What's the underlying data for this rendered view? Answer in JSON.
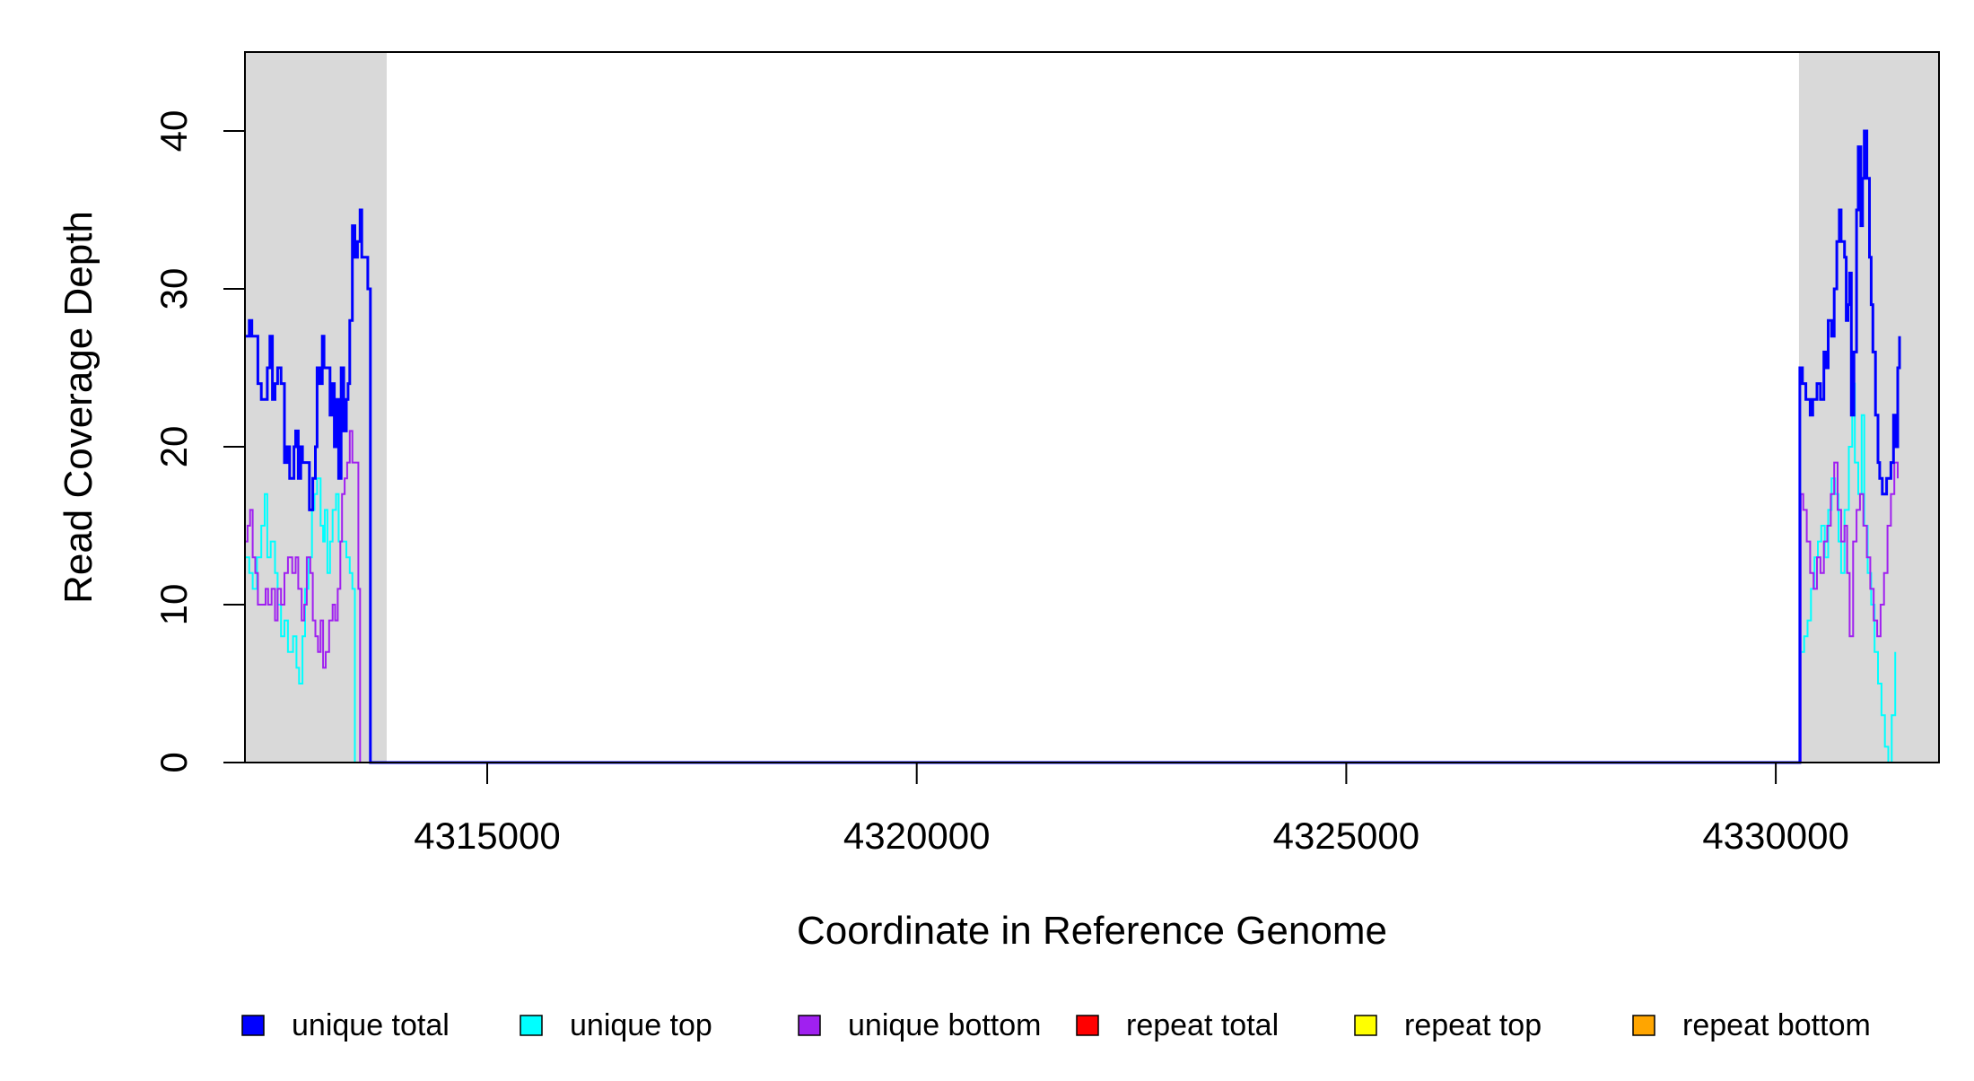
{
  "chart_data": {
    "type": "line",
    "title": "",
    "xlabel": "Coordinate in Reference Genome",
    "ylabel": "Read Coverage Depth",
    "xlim": [
      4312180,
      4331900
    ],
    "ylim": [
      0,
      45
    ],
    "x_ticks": [
      4315000,
      4320000,
      4325000,
      4330000
    ],
    "x_tick_labels": [
      "4315000",
      "4320000",
      "4325000",
      "4330000"
    ],
    "y_ticks": [
      0,
      10,
      20,
      30,
      40
    ],
    "y_tick_labels": [
      "0",
      "10",
      "20",
      "30",
      "40"
    ],
    "grid": false,
    "legend_position": "bottom",
    "shaded_regions": [
      {
        "x": [
          4312180,
          4313830
        ],
        "color": "#d9d9d9"
      },
      {
        "x": [
          4330270,
          4331900
        ],
        "color": "#d9d9d9"
      }
    ],
    "series": [
      {
        "name": "unique total",
        "color": "#0000ff",
        "points": [
          [
            4312180,
            27
          ],
          [
            4312230,
            28
          ],
          [
            4312260,
            27
          ],
          [
            4312300,
            27
          ],
          [
            4312330,
            24
          ],
          [
            4312370,
            23
          ],
          [
            4312440,
            25
          ],
          [
            4312470,
            27
          ],
          [
            4312500,
            23
          ],
          [
            4312530,
            24
          ],
          [
            4312560,
            25
          ],
          [
            4312600,
            24
          ],
          [
            4312640,
            19
          ],
          [
            4312670,
            20
          ],
          [
            4312700,
            18
          ],
          [
            4312750,
            20
          ],
          [
            4312770,
            21
          ],
          [
            4312800,
            18
          ],
          [
            4312830,
            20
          ],
          [
            4312850,
            19
          ],
          [
            4312900,
            19
          ],
          [
            4312930,
            16
          ],
          [
            4312970,
            18
          ],
          [
            4313000,
            20
          ],
          [
            4313020,
            25
          ],
          [
            4313050,
            24
          ],
          [
            4313080,
            27
          ],
          [
            4313100,
            25
          ],
          [
            4313150,
            25
          ],
          [
            4313170,
            22
          ],
          [
            4313200,
            24
          ],
          [
            4313220,
            20
          ],
          [
            4313250,
            23
          ],
          [
            4313270,
            18
          ],
          [
            4313300,
            25
          ],
          [
            4313330,
            21
          ],
          [
            4313360,
            23
          ],
          [
            4313380,
            24
          ],
          [
            4313400,
            28
          ],
          [
            4313430,
            34
          ],
          [
            4313460,
            32
          ],
          [
            4313490,
            33
          ],
          [
            4313520,
            35
          ],
          [
            4313540,
            32
          ],
          [
            4313580,
            32
          ],
          [
            4313610,
            30
          ],
          [
            4313630,
            30
          ],
          [
            4313640,
            0
          ],
          [
            4330270,
            0
          ],
          [
            4330280,
            25
          ],
          [
            4330310,
            24
          ],
          [
            4330350,
            23
          ],
          [
            4330400,
            22
          ],
          [
            4330430,
            23
          ],
          [
            4330480,
            24
          ],
          [
            4330520,
            23
          ],
          [
            4330560,
            26
          ],
          [
            4330590,
            25
          ],
          [
            4330610,
            28
          ],
          [
            4330650,
            27
          ],
          [
            4330680,
            30
          ],
          [
            4330710,
            33
          ],
          [
            4330740,
            35
          ],
          [
            4330760,
            33
          ],
          [
            4330800,
            32
          ],
          [
            4330820,
            28
          ],
          [
            4330840,
            29
          ],
          [
            4330860,
            31
          ],
          [
            4330880,
            22
          ],
          [
            4330910,
            26
          ],
          [
            4330940,
            35
          ],
          [
            4330960,
            39
          ],
          [
            4330990,
            34
          ],
          [
            4331010,
            37
          ],
          [
            4331030,
            40
          ],
          [
            4331060,
            37
          ],
          [
            4331090,
            32
          ],
          [
            4331110,
            29
          ],
          [
            4331130,
            26
          ],
          [
            4331160,
            22
          ],
          [
            4331190,
            19
          ],
          [
            4331210,
            18
          ],
          [
            4331240,
            17
          ],
          [
            4331290,
            18
          ],
          [
            4331340,
            19
          ],
          [
            4331370,
            22
          ],
          [
            4331390,
            20
          ],
          [
            4331420,
            25
          ],
          [
            4331440,
            27
          ]
        ]
      },
      {
        "name": "unique top",
        "color": "#00ffff",
        "points": [
          [
            4312180,
            13
          ],
          [
            4312230,
            12
          ],
          [
            4312270,
            11
          ],
          [
            4312320,
            13
          ],
          [
            4312370,
            15
          ],
          [
            4312410,
            17
          ],
          [
            4312440,
            13
          ],
          [
            4312480,
            14
          ],
          [
            4312530,
            12
          ],
          [
            4312560,
            10
          ],
          [
            4312600,
            8
          ],
          [
            4312640,
            9
          ],
          [
            4312680,
            7
          ],
          [
            4312740,
            8
          ],
          [
            4312780,
            6
          ],
          [
            4312810,
            5
          ],
          [
            4312850,
            8
          ],
          [
            4312880,
            11
          ],
          [
            4312920,
            13
          ],
          [
            4312960,
            16
          ],
          [
            4312990,
            17
          ],
          [
            4313020,
            18
          ],
          [
            4313060,
            15
          ],
          [
            4313090,
            14
          ],
          [
            4313110,
            16
          ],
          [
            4313140,
            12
          ],
          [
            4313170,
            14
          ],
          [
            4313200,
            16
          ],
          [
            4313240,
            17
          ],
          [
            4313270,
            14
          ],
          [
            4313320,
            14
          ],
          [
            4313360,
            13
          ],
          [
            4313400,
            12
          ],
          [
            4313430,
            11
          ],
          [
            4313460,
            0
          ],
          [
            4330270,
            0
          ],
          [
            4330290,
            7
          ],
          [
            4330330,
            8
          ],
          [
            4330370,
            9
          ],
          [
            4330410,
            11
          ],
          [
            4330450,
            13
          ],
          [
            4330490,
            14
          ],
          [
            4330530,
            15
          ],
          [
            4330570,
            13
          ],
          [
            4330610,
            16
          ],
          [
            4330650,
            18
          ],
          [
            4330690,
            17
          ],
          [
            4330730,
            14
          ],
          [
            4330760,
            12
          ],
          [
            4330800,
            16
          ],
          [
            4330850,
            20
          ],
          [
            4330890,
            24
          ],
          [
            4330920,
            19
          ],
          [
            4330960,
            17
          ],
          [
            4331000,
            22
          ],
          [
            4331030,
            15
          ],
          [
            4331070,
            12
          ],
          [
            4331110,
            10
          ],
          [
            4331150,
            7
          ],
          [
            4331190,
            5
          ],
          [
            4331230,
            3
          ],
          [
            4331270,
            1
          ],
          [
            4331310,
            0
          ],
          [
            4331350,
            3
          ],
          [
            4331390,
            7
          ]
        ]
      },
      {
        "name": "unique bottom",
        "color": "#a020f0",
        "points": [
          [
            4312180,
            14
          ],
          [
            4312210,
            15
          ],
          [
            4312240,
            16
          ],
          [
            4312270,
            13
          ],
          [
            4312300,
            12
          ],
          [
            4312330,
            10
          ],
          [
            4312380,
            10
          ],
          [
            4312420,
            11
          ],
          [
            4312450,
            10
          ],
          [
            4312490,
            11
          ],
          [
            4312530,
            9
          ],
          [
            4312560,
            11
          ],
          [
            4312600,
            10
          ],
          [
            4312640,
            12
          ],
          [
            4312680,
            13
          ],
          [
            4312730,
            12
          ],
          [
            4312770,
            13
          ],
          [
            4312800,
            11
          ],
          [
            4312840,
            9
          ],
          [
            4312870,
            10
          ],
          [
            4312900,
            13
          ],
          [
            4312940,
            12
          ],
          [
            4312970,
            9
          ],
          [
            4313000,
            8
          ],
          [
            4313030,
            7
          ],
          [
            4313060,
            9
          ],
          [
            4313090,
            6
          ],
          [
            4313120,
            7
          ],
          [
            4313160,
            9
          ],
          [
            4313200,
            10
          ],
          [
            4313230,
            9
          ],
          [
            4313260,
            11
          ],
          [
            4313290,
            14
          ],
          [
            4313310,
            17
          ],
          [
            4313340,
            18
          ],
          [
            4313370,
            19
          ],
          [
            4313400,
            21
          ],
          [
            4313430,
            19
          ],
          [
            4313460,
            19
          ],
          [
            4313500,
            11
          ],
          [
            4313520,
            0
          ],
          [
            4330270,
            0
          ],
          [
            4330290,
            17
          ],
          [
            4330320,
            16
          ],
          [
            4330360,
            14
          ],
          [
            4330400,
            12
          ],
          [
            4330440,
            11
          ],
          [
            4330480,
            13
          ],
          [
            4330520,
            12
          ],
          [
            4330560,
            14
          ],
          [
            4330600,
            15
          ],
          [
            4330640,
            17
          ],
          [
            4330680,
            19
          ],
          [
            4330720,
            16
          ],
          [
            4330760,
            14
          ],
          [
            4330800,
            15
          ],
          [
            4330830,
            12
          ],
          [
            4330860,
            8
          ],
          [
            4330900,
            14
          ],
          [
            4330940,
            16
          ],
          [
            4330980,
            17
          ],
          [
            4331020,
            15
          ],
          [
            4331060,
            13
          ],
          [
            4331100,
            11
          ],
          [
            4331140,
            9
          ],
          [
            4331180,
            8
          ],
          [
            4331220,
            10
          ],
          [
            4331260,
            12
          ],
          [
            4331300,
            15
          ],
          [
            4331340,
            17
          ],
          [
            4331380,
            19
          ],
          [
            4331420,
            18
          ]
        ]
      },
      {
        "name": "repeat total",
        "color": "#ff0000",
        "points": [
          [
            4312180,
            0
          ],
          [
            4331900,
            0
          ]
        ]
      },
      {
        "name": "repeat top",
        "color": "#ffff00",
        "points": [
          [
            4312180,
            0
          ],
          [
            4331900,
            0
          ]
        ]
      },
      {
        "name": "repeat bottom",
        "color": "#ffa500",
        "points": [
          [
            4312180,
            0
          ],
          [
            4331900,
            0
          ]
        ]
      }
    ]
  }
}
